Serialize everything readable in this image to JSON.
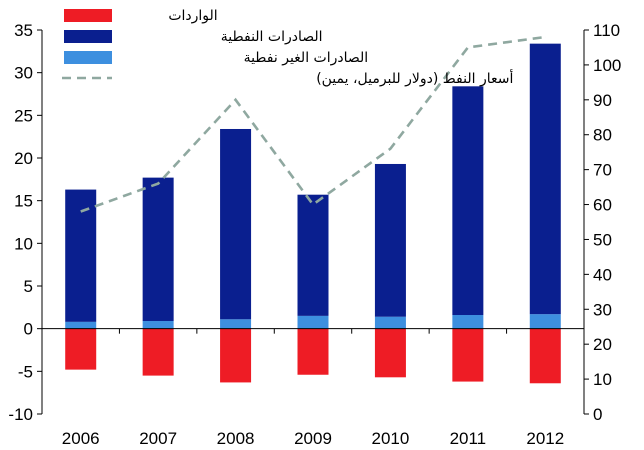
{
  "chart_data": {
    "type": "bar",
    "categories": [
      "2006",
      "2007",
      "2008",
      "2009",
      "2010",
      "2011",
      "2012"
    ],
    "series": [
      {
        "name": "الواردات",
        "kind": "bar",
        "axis": "left",
        "color": "#ee1c25",
        "values": [
          -4.8,
          -5.5,
          -6.3,
          -5.4,
          -5.7,
          -6.2,
          -6.4
        ]
      },
      {
        "name": "الصادرات الغير نفطية",
        "kind": "bar-stacked-base",
        "axis": "left",
        "color": "#3d8fdf",
        "values": [
          0.8,
          0.9,
          1.1,
          1.5,
          1.4,
          1.6,
          1.7
        ]
      },
      {
        "name": "الصادرات النفطية",
        "kind": "bar-stacked",
        "axis": "left",
        "color": "#0a1f8f",
        "values": [
          15.5,
          16.8,
          22.3,
          14.2,
          17.9,
          26.8,
          31.7
        ]
      },
      {
        "name": "أسعار النفط (دولار للبرميل، يمين)",
        "kind": "line",
        "axis": "right",
        "color": "#8fa8a0",
        "values": [
          58,
          66,
          90,
          60,
          76,
          105,
          108
        ]
      }
    ],
    "y_left": {
      "min": -10,
      "max": 35,
      "ticks": [
        "-10",
        "-5",
        "0",
        "5",
        "10",
        "15",
        "20",
        "25",
        "30",
        "35"
      ]
    },
    "y_right": {
      "min": 0,
      "max": 110,
      "ticks": [
        "0",
        "10",
        "20",
        "30",
        "40",
        "50",
        "60",
        "70",
        "80",
        "90",
        "100",
        "110"
      ]
    },
    "grid": false,
    "legend_position": "top-left",
    "title": "",
    "xlabel": "",
    "ylabel": ""
  }
}
